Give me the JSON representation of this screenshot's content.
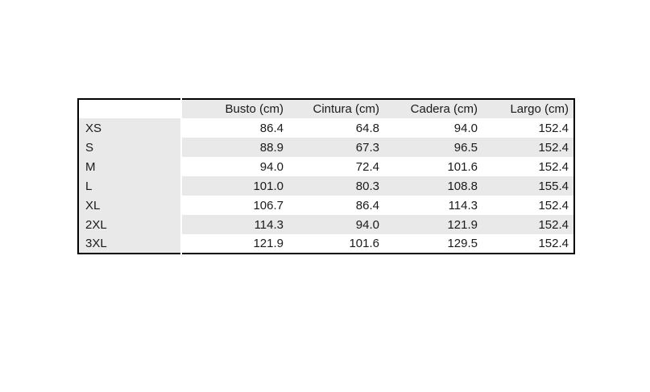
{
  "colors": {
    "background": "#ffffff",
    "band_gray": "#e9e9e9",
    "table_border": "#000000",
    "text": "#1a1a1a"
  },
  "chart_data": {
    "type": "table",
    "title": "",
    "columns": [
      "",
      "Busto (cm)",
      "Cintura (cm)",
      "Cadera (cm)",
      "Largo (cm)"
    ],
    "rows": [
      [
        "XS",
        "86.4",
        "64.8",
        "94.0",
        "152.4"
      ],
      [
        "S",
        "88.9",
        "67.3",
        "96.5",
        "152.4"
      ],
      [
        "M",
        "94.0",
        "72.4",
        "101.6",
        "152.4"
      ],
      [
        "L",
        "101.0",
        "80.3",
        "108.8",
        "155.4"
      ],
      [
        "XL",
        "106.7",
        "86.4",
        "114.3",
        "152.4"
      ],
      [
        "2XL",
        "114.3",
        "94.0",
        "121.9",
        "152.4"
      ],
      [
        "3XL",
        "121.9",
        "101.6",
        "129.5",
        "152.4"
      ]
    ],
    "layout": {
      "header_band": "gray",
      "label_column_band": "gray",
      "data_row_bands_starting_at_first_row": [
        "white",
        "gray",
        "white",
        "gray",
        "white",
        "gray",
        "white"
      ],
      "grid": "off",
      "outer_border": "on"
    }
  }
}
